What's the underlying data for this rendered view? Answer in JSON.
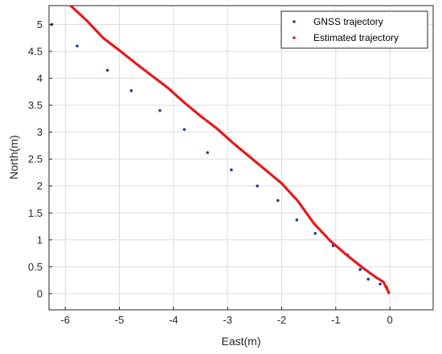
{
  "chart_data": {
    "type": "scatter",
    "xlabel": "East(m)",
    "ylabel": "North(m)",
    "xlim": [
      -6.3,
      0.8
    ],
    "ylim": [
      -0.3,
      5.35
    ],
    "xticks": [
      -6,
      -5,
      -4,
      -3,
      -2,
      -1,
      0
    ],
    "yticks": [
      0,
      0.5,
      1,
      1.5,
      2,
      2.5,
      3,
      3.5,
      4,
      4.5,
      5
    ],
    "xtick_labels": [
      "-6",
      "-5",
      "-4",
      "-3",
      "-2",
      "-1",
      "0"
    ],
    "ytick_labels": [
      "0",
      "0.5",
      "1",
      "1.5",
      "2",
      "2.5",
      "3",
      "3.5",
      "4",
      "4.5",
      "5"
    ],
    "grid": true,
    "legend_position": "top-right",
    "series": [
      {
        "name": "GNSS trajectory",
        "color": "#1f3f8f",
        "x": [
          -6.25,
          -5.78,
          -5.22,
          -4.78,
          -4.25,
          -3.8,
          -3.37,
          -2.93,
          -2.45,
          -2.07,
          -1.72,
          -1.38,
          -1.05,
          -0.78,
          -0.55,
          -0.4,
          -0.18,
          -0.06,
          -0.02
        ],
        "y": [
          5.0,
          4.6,
          4.15,
          3.77,
          3.4,
          3.05,
          2.62,
          2.3,
          2.0,
          1.73,
          1.37,
          1.12,
          0.89,
          0.72,
          0.45,
          0.27,
          0.18,
          0.12,
          0.02
        ]
      },
      {
        "name": "Estimated trajectory",
        "color": "#e31a1c",
        "x": [
          -5.9,
          -5.6,
          -5.3,
          -5.0,
          -4.7,
          -4.4,
          -4.1,
          -3.8,
          -3.5,
          -3.2,
          -2.9,
          -2.6,
          -2.3,
          -2.0,
          -1.7,
          -1.4,
          -1.1,
          -0.8,
          -0.5,
          -0.25,
          -0.12,
          -0.06,
          -0.02
        ],
        "y": [
          5.35,
          5.07,
          4.75,
          4.52,
          4.28,
          4.05,
          3.82,
          3.55,
          3.3,
          3.07,
          2.8,
          2.55,
          2.3,
          2.05,
          1.72,
          1.3,
          0.98,
          0.72,
          0.48,
          0.3,
          0.22,
          0.1,
          0.02
        ]
      }
    ]
  }
}
